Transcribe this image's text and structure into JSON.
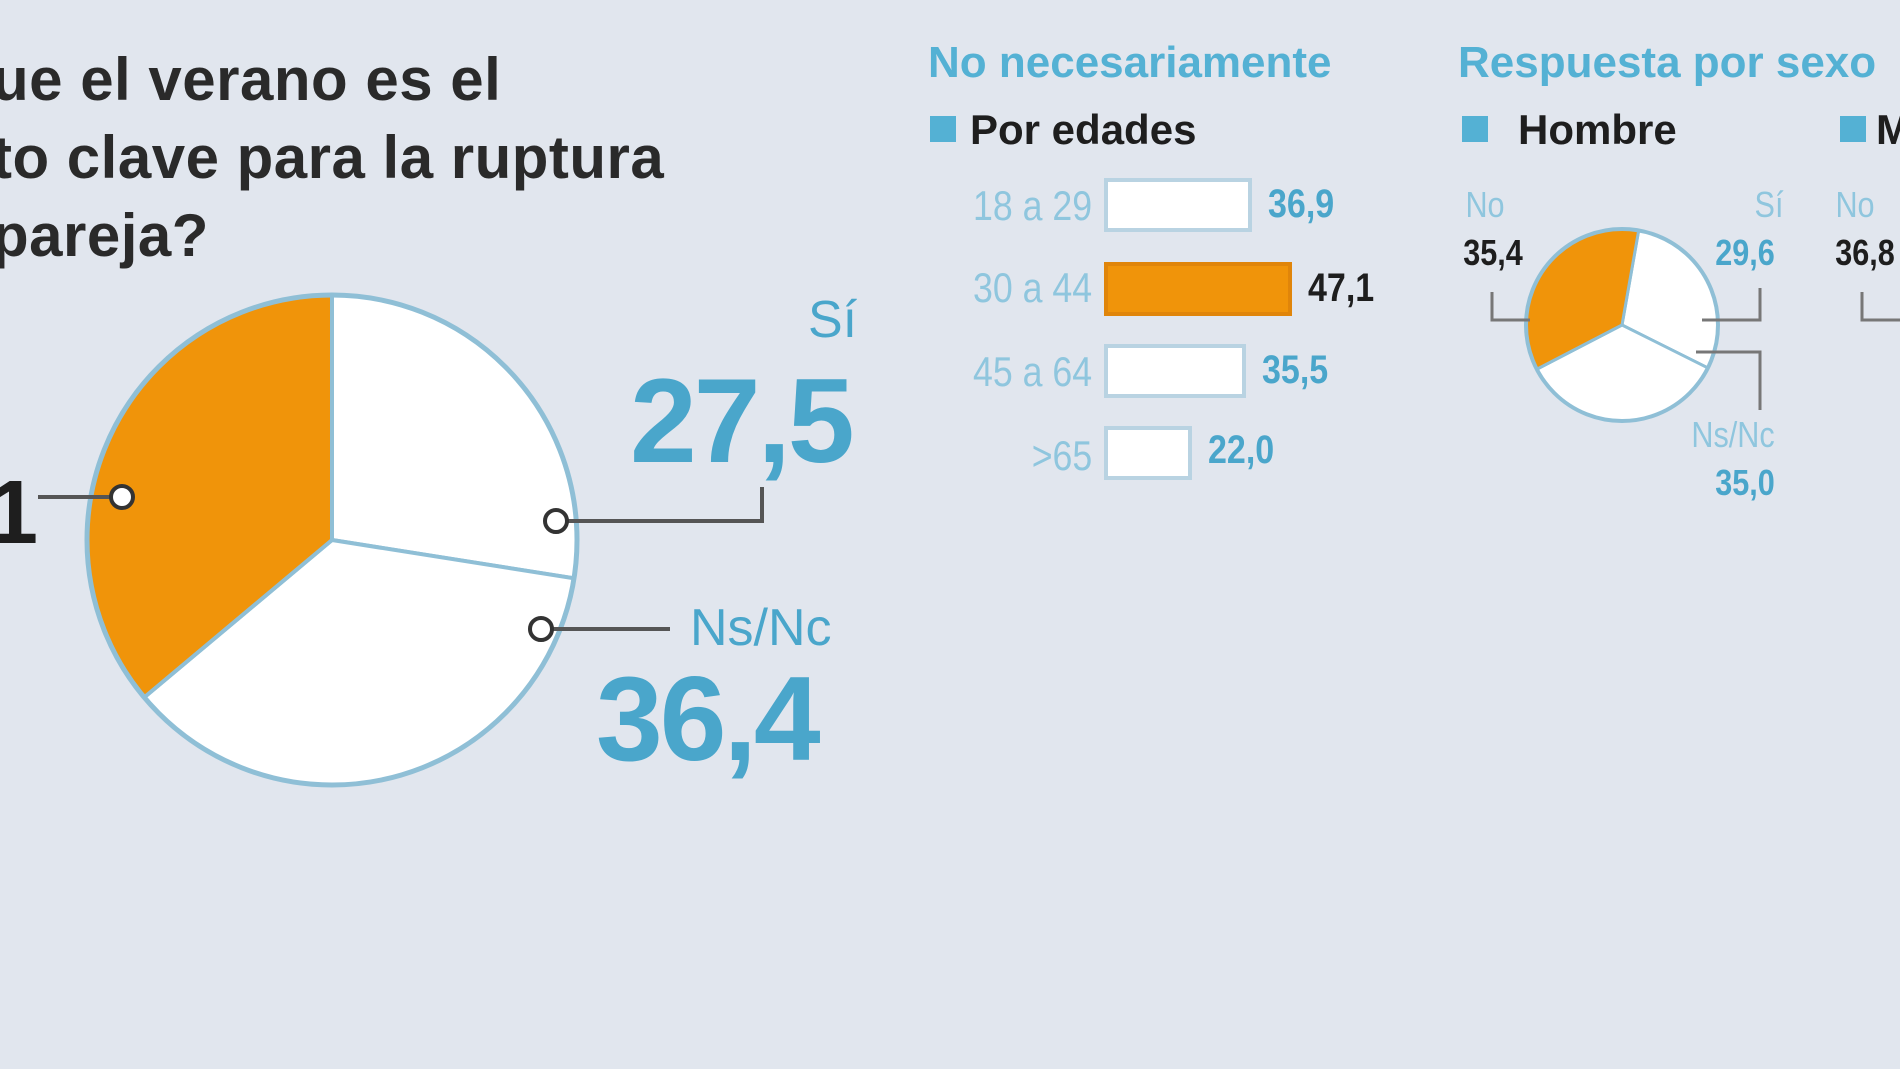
{
  "question": {
    "line1": "ue el verano es el",
    "line2": "to clave para la ruptura",
    "line3": "pareja?"
  },
  "main_pie": {
    "no_value_fragment": "1",
    "si_label": "Sí",
    "si_value": "27,5",
    "nsnc_label": "Ns/Nc",
    "nsnc_value": "36,4"
  },
  "no_section": {
    "header": "No necesariamente",
    "subheader": "Por edades",
    "rows": [
      {
        "label": "18 a 29",
        "value": "36,9"
      },
      {
        "label": "30 a 44",
        "value": "47,1"
      },
      {
        "label": "45 a 64",
        "value": "35,5"
      },
      {
        "label": ">65",
        "value": "22,0"
      }
    ]
  },
  "sex_section": {
    "header": "Respuesta por sexo",
    "hombre_label": "Hombre",
    "mujer_label_fragment": "M",
    "hombre": {
      "no_label": "No",
      "no_value": "35,4",
      "si_label": "Sí",
      "si_value": "29,6",
      "nsnc_label": "Ns/Nc",
      "nsnc_value": "35,0"
    },
    "mujer": {
      "no_label": "No",
      "no_value": "36,8"
    }
  },
  "colors": {
    "orange": "#f0940a",
    "blue": "#4aa6cb",
    "background": "#e1e6ee"
  },
  "chart_data": [
    {
      "type": "pie",
      "categories": [
        "No",
        "Sí",
        "Ns/Nc"
      ],
      "values": [
        36.1,
        27.5,
        36.4
      ],
      "highlight": "No"
    },
    {
      "type": "bar",
      "categories": [
        "18 a 29",
        "30 a 44",
        "45 a 64",
        ">65"
      ],
      "values": [
        36.9,
        47.1,
        35.5,
        22.0
      ],
      "highlight": "30 a 44"
    },
    {
      "type": "pie",
      "categories": [
        "No",
        "Sí",
        "Ns/Nc"
      ],
      "values": [
        35.4,
        29.6,
        35.0
      ],
      "highlight": "No"
    }
  ]
}
